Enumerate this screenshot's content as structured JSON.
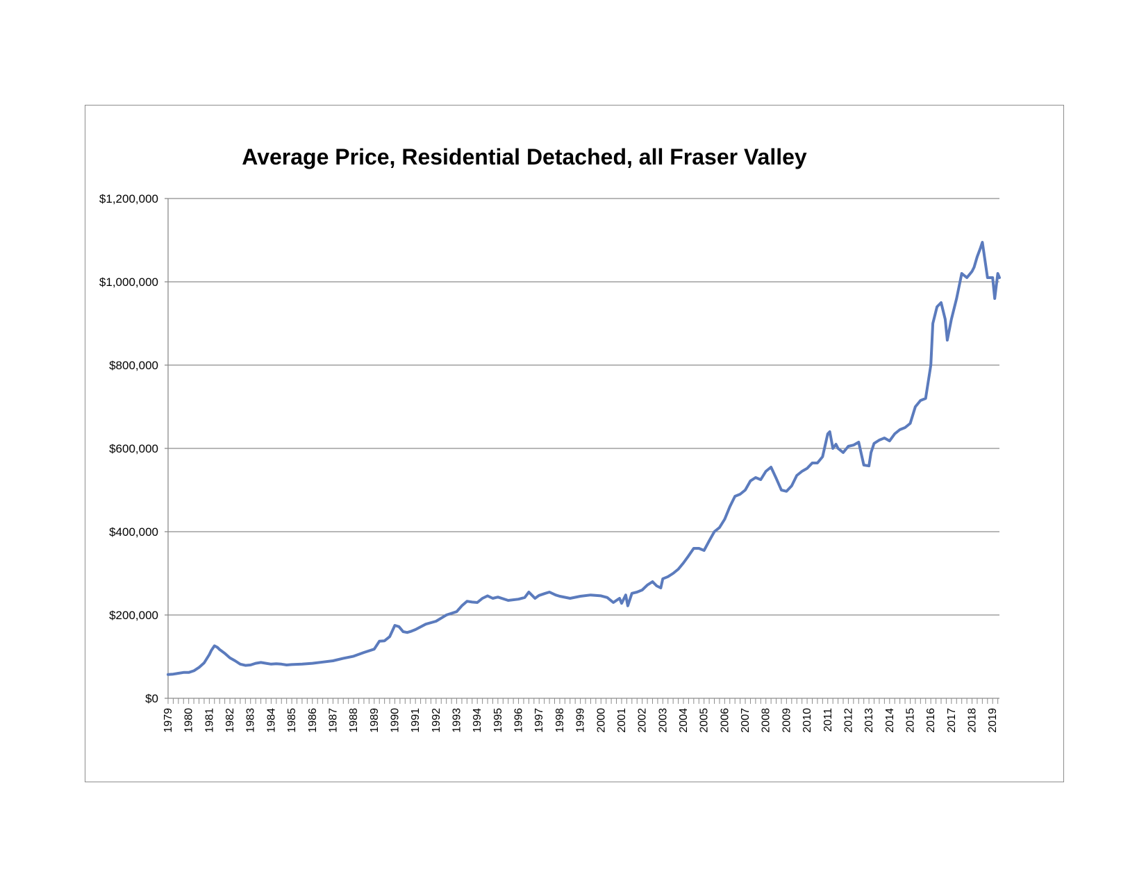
{
  "chart_data": {
    "type": "line",
    "title": "Average Price, Residential Detached, all Fraser Valley",
    "xlabel": "",
    "ylabel": "",
    "ylim": [
      0,
      1200000
    ],
    "y_ticks": [
      0,
      200000,
      400000,
      600000,
      800000,
      1000000,
      1200000
    ],
    "y_tick_labels": [
      "$0",
      "$200,000",
      "$400,000",
      "$600,000",
      "$800,000",
      "$1,000,000",
      "$1,200,000"
    ],
    "x_tick_labels": [
      "1979",
      "1980",
      "1981",
      "1982",
      "1983",
      "1984",
      "1985",
      "1986",
      "1987",
      "1988",
      "1989",
      "1990",
      "1991",
      "1992",
      "1993",
      "1994",
      "1995",
      "1996",
      "1997",
      "1998",
      "1999",
      "2000",
      "2001",
      "2002",
      "2003",
      "2004",
      "2005",
      "2006",
      "2007",
      "2008",
      "2009",
      "2010",
      "2011",
      "2012",
      "2013",
      "2014",
      "2015",
      "2016",
      "2017",
      "2018",
      "2019"
    ],
    "xlim": [
      1979.0,
      2019.33
    ],
    "grid": "horizontal",
    "legend": "none",
    "line_color": "#5b7bbd",
    "series": [
      {
        "x": [
          1979.0,
          1979.25,
          1979.5,
          1979.75,
          1980.0,
          1980.25,
          1980.5,
          1980.75,
          1981.0,
          1981.1,
          1981.25,
          1981.4,
          1981.5,
          1981.75,
          1982.0,
          1982.25,
          1982.5,
          1982.75,
          1983.0,
          1983.25,
          1983.5,
          1983.75,
          1984.0,
          1984.25,
          1984.5,
          1984.75,
          1985.0,
          1985.5,
          1986.0,
          1986.5,
          1987.0,
          1987.5,
          1988.0,
          1988.5,
          1989.0,
          1989.25,
          1989.5,
          1989.75,
          1990.0,
          1990.2,
          1990.4,
          1990.6,
          1990.8,
          1991.0,
          1991.5,
          1992.0,
          1992.5,
          1993.0,
          1993.25,
          1993.5,
          1993.75,
          1994.0,
          1994.25,
          1994.5,
          1994.75,
          1995.0,
          1995.5,
          1996.0,
          1996.3,
          1996.5,
          1996.8,
          1997.0,
          1997.3,
          1997.5,
          1997.8,
          1998.0,
          1998.5,
          1999.0,
          1999.5,
          2000.0,
          2000.3,
          2000.6,
          2000.9,
          2001.0,
          2001.2,
          2001.3,
          2001.5,
          2001.75,
          2002.0,
          2002.25,
          2002.5,
          2002.7,
          2002.9,
          2003.0,
          2003.25,
          2003.5,
          2003.75,
          2004.0,
          2004.25,
          2004.5,
          2004.75,
          2005.0,
          2005.25,
          2005.5,
          2005.75,
          2006.0,
          2006.25,
          2006.5,
          2006.75,
          2007.0,
          2007.25,
          2007.5,
          2007.75,
          2008.0,
          2008.25,
          2008.5,
          2008.75,
          2009.0,
          2009.25,
          2009.5,
          2009.75,
          2010.0,
          2010.25,
          2010.5,
          2010.75,
          2011.0,
          2011.1,
          2011.25,
          2011.4,
          2011.5,
          2011.75,
          2012.0,
          2012.25,
          2012.5,
          2012.75,
          2013.0,
          2013.1,
          2013.25,
          2013.5,
          2013.75,
          2014.0,
          2014.25,
          2014.5,
          2014.75,
          2015.0,
          2015.25,
          2015.5,
          2015.75,
          2016.0,
          2016.1,
          2016.3,
          2016.5,
          2016.7,
          2016.8,
          2017.0,
          2017.25,
          2017.5,
          2017.75,
          2018.0,
          2018.1,
          2018.25,
          2018.4,
          2018.5,
          2018.75,
          2019.0,
          2019.1,
          2019.25,
          2019.33
        ],
        "values": [
          57000,
          58000,
          60000,
          62000,
          62000,
          66000,
          74000,
          85000,
          105000,
          115000,
          126000,
          122000,
          117000,
          108000,
          97000,
          90000,
          82000,
          79000,
          80000,
          84000,
          86000,
          84000,
          82000,
          83000,
          82000,
          80000,
          81000,
          82000,
          84000,
          87000,
          90000,
          96000,
          101000,
          110000,
          118000,
          137000,
          138000,
          148000,
          175000,
          172000,
          160000,
          158000,
          161000,
          165000,
          178000,
          185000,
          200000,
          208000,
          222000,
          233000,
          231000,
          230000,
          240000,
          246000,
          240000,
          243000,
          235000,
          238000,
          242000,
          255000,
          240000,
          247000,
          252000,
          255000,
          248000,
          245000,
          240000,
          245000,
          248000,
          246000,
          242000,
          230000,
          240000,
          228000,
          248000,
          222000,
          252000,
          255000,
          260000,
          272000,
          280000,
          270000,
          265000,
          287000,
          292000,
          300000,
          310000,
          325000,
          342000,
          360000,
          360000,
          355000,
          378000,
          400000,
          410000,
          430000,
          460000,
          485000,
          490000,
          500000,
          522000,
          530000,
          525000,
          545000,
          555000,
          528000,
          500000,
          497000,
          510000,
          535000,
          545000,
          552000,
          565000,
          565000,
          580000,
          635000,
          640000,
          600000,
          610000,
          600000,
          590000,
          605000,
          608000,
          615000,
          560000,
          558000,
          590000,
          612000,
          620000,
          625000,
          618000,
          635000,
          645000,
          650000,
          660000,
          700000,
          715000,
          720000,
          800000,
          900000,
          940000,
          950000,
          910000,
          860000,
          910000,
          960000,
          1020000,
          1010000,
          1025000,
          1035000,
          1060000,
          1080000,
          1095000,
          1010000,
          1010000,
          960000,
          1020000,
          1010000
        ]
      }
    ]
  }
}
